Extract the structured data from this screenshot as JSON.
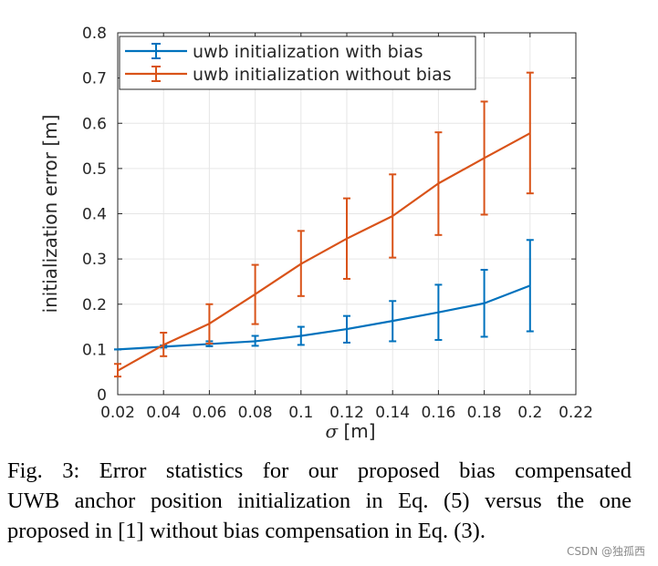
{
  "chart_data": {
    "type": "line",
    "xlabel_symbol": "σ",
    "xlabel_unit": " [m]",
    "ylabel": "initialization error [m]",
    "xlim": [
      0.02,
      0.22
    ],
    "ylim": [
      0,
      0.8
    ],
    "grid": true,
    "legend_position": "top-left",
    "xticks": [
      0.02,
      0.04,
      0.06,
      0.08,
      0.1,
      0.12,
      0.14,
      0.16,
      0.18,
      0.2,
      0.22
    ],
    "xtick_labels": [
      "0.02",
      "0.04",
      "0.06",
      "0.08",
      "0.1",
      "0.12",
      "0.14",
      "0.16",
      "0.18",
      "0.2",
      "0.22"
    ],
    "yticks": [
      0,
      0.1,
      0.2,
      0.3,
      0.4,
      0.5,
      0.6,
      0.7,
      0.8
    ],
    "ytick_labels": [
      "0",
      "0.1",
      "0.2",
      "0.3",
      "0.4",
      "0.5",
      "0.6",
      "0.7",
      "0.8"
    ],
    "x": [
      0.02,
      0.04,
      0.06,
      0.08,
      0.1,
      0.12,
      0.14,
      0.16,
      0.18,
      0.2
    ],
    "series": [
      {
        "name": "uwb initialization with bias",
        "color": "#0072bd",
        "values": [
          0.1,
          0.106,
          0.112,
          0.118,
          0.13,
          0.145,
          0.163,
          0.182,
          0.202,
          0.241
        ],
        "err_low": [
          0.1,
          0.104,
          0.107,
          0.108,
          0.11,
          0.115,
          0.118,
          0.121,
          0.128,
          0.14
        ],
        "err_high": [
          0.1,
          0.109,
          0.118,
          0.13,
          0.15,
          0.174,
          0.207,
          0.243,
          0.276,
          0.342
        ]
      },
      {
        "name": "uwb initialization without bias",
        "color": "#d95319",
        "values": [
          0.053,
          0.11,
          0.157,
          0.222,
          0.289,
          0.345,
          0.395,
          0.467,
          0.523,
          0.578
        ],
        "err_low": [
          0.04,
          0.085,
          0.113,
          0.156,
          0.218,
          0.256,
          0.303,
          0.353,
          0.398,
          0.445
        ],
        "err_high": [
          0.068,
          0.137,
          0.2,
          0.287,
          0.362,
          0.434,
          0.487,
          0.58,
          0.648,
          0.712
        ]
      }
    ]
  },
  "caption": {
    "lines": [
      "Fig. 3: Error statistics for our proposed bias compensated",
      "UWB anchor position initialization in Eq. (5) versus the one",
      "proposed in [1] without bias compensation in Eq. (3)."
    ]
  },
  "watermark": "CSDN @独孤西"
}
